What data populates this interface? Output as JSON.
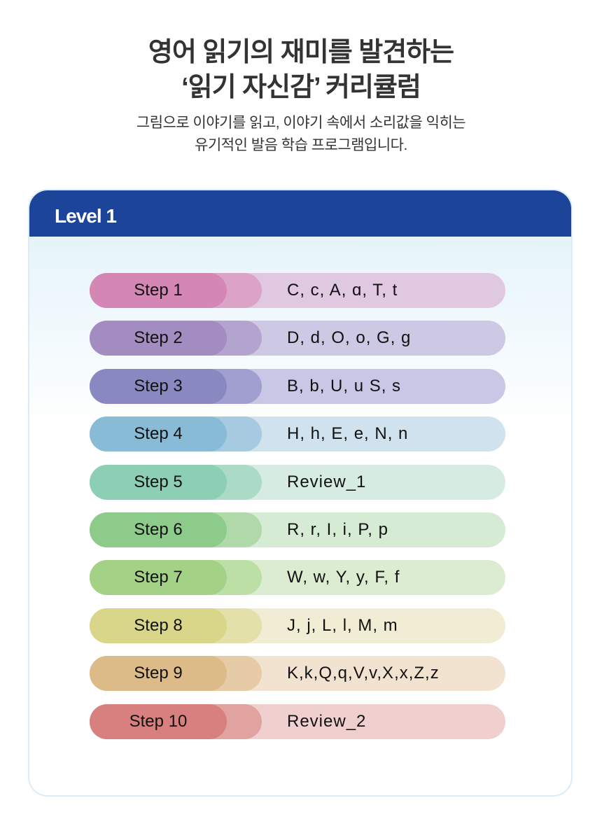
{
  "header": {
    "title_line1": "영어 읽기의 재미를 발견하는",
    "title_line2": "‘읽기 자신감’ 커리큘럼",
    "subtitle_line1": "그림으로 이야기를 읽고, 이야기 속에서 소리값을 익히는",
    "subtitle_line2": "유기적인 발음 학습 프로그램입니다."
  },
  "card": {
    "level": "Level 1",
    "accent": "#1c4499"
  },
  "steps": [
    {
      "label": "Step 1",
      "letters": "C, c, A, ɑ, T, t",
      "colors": [
        "#d486b5",
        "#dba3c8",
        "#e0c8e0"
      ]
    },
    {
      "label": "Step 2",
      "letters": "D, d, O, o, G, g",
      "colors": [
        "#a38cc0",
        "#b3a3cf",
        "#cdc8e3"
      ]
    },
    {
      "label": "Step 3",
      "letters": "B, b, U, u S, s",
      "colors": [
        "#8a88c0",
        "#a09fcf",
        "#c8c8e6"
      ]
    },
    {
      "label": "Step 4",
      "letters": "H, h, E, e, N, n",
      "colors": [
        "#87bbd6",
        "#a6cbe0",
        "#cfe2ee"
      ]
    },
    {
      "label": "Step 5",
      "letters": "Review_1",
      "colors": [
        "#8ccfb5",
        "#abdbc7",
        "#d6ece3"
      ]
    },
    {
      "label": "Step 6",
      "letters": "R, r, I, i, P, p",
      "colors": [
        "#8dcb8a",
        "#afd9a9",
        "#d6ebd3"
      ]
    },
    {
      "label": "Step 7",
      "letters": "W, w, Y, y, F, f",
      "colors": [
        "#a3d186",
        "#bcdfa6",
        "#dcecd1"
      ]
    },
    {
      "label": "Step 8",
      "letters": "J, j, L, l, M, m",
      "colors": [
        "#d9d68a",
        "#e3e0a9",
        "#f1edd4"
      ]
    },
    {
      "label": "Step 9",
      "letters": "K,k,Q,q,V,v,X,x,Z,z",
      "colors": [
        "#dcbb88",
        "#e5cba6",
        "#f2e3d1"
      ]
    },
    {
      "label": "Step 10",
      "letters": "Review_2",
      "colors": [
        "#d88080",
        "#e0a3a0",
        "#f0d0cf"
      ]
    }
  ]
}
